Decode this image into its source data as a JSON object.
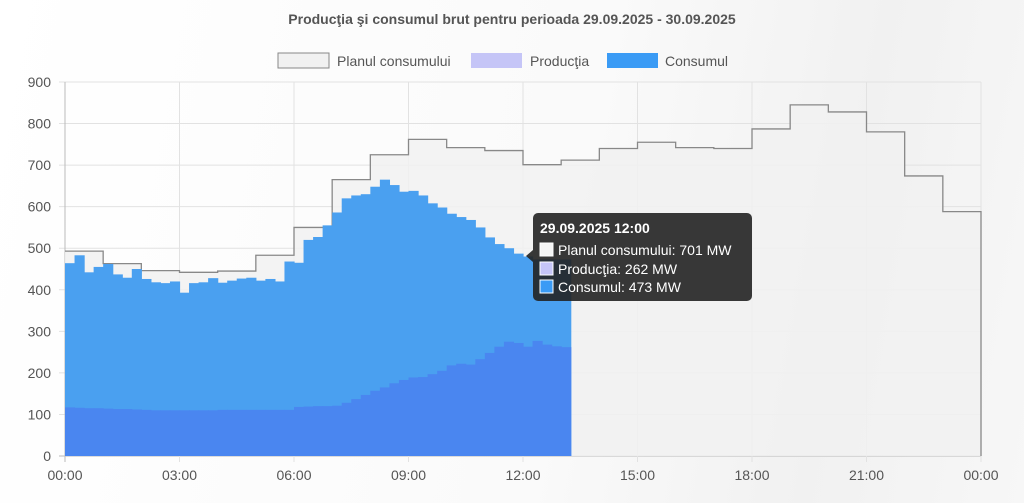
{
  "chart_data": {
    "type": "area",
    "title": "Producţia şi consumul brut pentru perioada 29.09.2025 - 30.09.2025",
    "legend_position": "top",
    "grid": true,
    "ylim": [
      0,
      900
    ],
    "y_ticks": [
      "0",
      "100",
      "200",
      "300",
      "400",
      "500",
      "600",
      "700",
      "800",
      "900"
    ],
    "x_ticks": [
      "00:00",
      "03:00",
      "06:00",
      "09:00",
      "12:00",
      "15:00",
      "18:00",
      "21:00",
      "00:00"
    ],
    "x_range_hours": [
      0,
      24
    ],
    "series": [
      {
        "name": "Planul consumului",
        "style": "step",
        "color_fill": "#f1f1f1",
        "color_line": "#888888",
        "x_hours": [
          0,
          1,
          2,
          3,
          4,
          5,
          6,
          7,
          8,
          9,
          10,
          11,
          12,
          13,
          14,
          15,
          16,
          17,
          18,
          19,
          20,
          21,
          22,
          23
        ],
        "values": [
          493,
          463,
          446,
          442,
          445,
          483,
          550,
          665,
          725,
          762,
          742,
          735,
          701,
          712,
          740,
          755,
          742,
          740,
          787,
          845,
          828,
          780,
          674,
          588
        ]
      },
      {
        "name": "Producţia",
        "style": "step",
        "color_fill": "#4a86f0",
        "color_legend": "#c5c5f7",
        "step_minutes": 15,
        "values": [
          117,
          116,
          115,
          115,
          114,
          113,
          113,
          112,
          111,
          110,
          110,
          110,
          110,
          110,
          110,
          110,
          111,
          111,
          111,
          111,
          111,
          111,
          111,
          111,
          118,
          119,
          120,
          120,
          121,
          128,
          137,
          147,
          157,
          165,
          175,
          183,
          189,
          190,
          197,
          205,
          218,
          222,
          220,
          233,
          248,
          263,
          275,
          272,
          263,
          277,
          268,
          264,
          262
        ]
      },
      {
        "name": "Consumul",
        "style": "step",
        "color_fill": "#4aa0f0",
        "color_legend": "#3a9bf5",
        "step_minutes": 15,
        "values": [
          464,
          483,
          442,
          455,
          462,
          437,
          429,
          450,
          426,
          418,
          416,
          420,
          393,
          416,
          418,
          428,
          417,
          422,
          427,
          429,
          422,
          426,
          420,
          468,
          465,
          520,
          527,
          555,
          586,
          620,
          627,
          630,
          648,
          665,
          652,
          636,
          638,
          627,
          608,
          598,
          583,
          575,
          568,
          550,
          526,
          510,
          500,
          487,
          480,
          473,
          473,
          473,
          473
        ]
      }
    ],
    "tooltip": {
      "title": "29.09.2025 12:00",
      "lines": [
        "Planul consumului: 701 MW",
        "Producţia: 262 MW",
        "Consumul: 473 MW"
      ]
    }
  }
}
